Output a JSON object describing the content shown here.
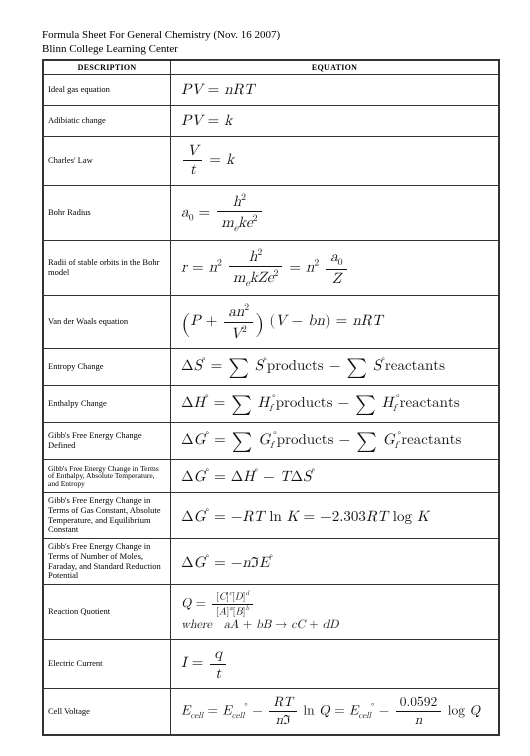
{
  "header": {
    "line1": "Formula Sheet For General Chemistry (Nov. 16 2007)",
    "line2": "Blinn College Learning Center"
  },
  "columns": {
    "desc": "DESCRIPTION",
    "eqn": "EQUATION"
  },
  "rows": [
    {
      "desc": "Ideal gas equation",
      "key": "ideal_gas"
    },
    {
      "desc": "Adibiatic change",
      "key": "adiabatic"
    },
    {
      "desc": "Charles' Law",
      "key": "charles"
    },
    {
      "desc": "Bohr Radius",
      "key": "bohr_radius"
    },
    {
      "desc": "Radii of stable orbits in the Bohr model",
      "key": "bohr_orbits"
    },
    {
      "desc": "Van der Waals equation",
      "key": "vdw"
    },
    {
      "desc": "Entropy Change",
      "key": "entropy"
    },
    {
      "desc": "Enthalpy Change",
      "key": "enthalpy"
    },
    {
      "desc": "Gibb's Free Energy Change Defined",
      "key": "gibbs_def"
    },
    {
      "desc": "Gibb's Free Energy Change in Terms of Enthalpy, Absolute Temperature, and Entropy",
      "key": "gibbs_hts"
    },
    {
      "desc": "Gibb's Free Energy Change in Terms of Gas Constant, Absolute Temperature, and Equilibrium Constant",
      "key": "gibbs_rtk"
    },
    {
      "desc": "Gibb's Free Energy Change in Terms of Number of Moles, Faraday, and Standard Reduction Potential",
      "key": "gibbs_nfe"
    },
    {
      "desc": "Reaction Quotient",
      "key": "reaction_q"
    },
    {
      "desc": "Electric Current",
      "key": "current"
    },
    {
      "desc": "Cell Voltage",
      "key": "cell_voltage"
    }
  ],
  "style": {
    "page_bg": "#ffffff",
    "border_color": "#333333",
    "title_fontsize": 11,
    "desc_fontsize": 8.5,
    "eqn_fontsize": 15,
    "header_fontsize": 8,
    "font_family": "Times New Roman"
  },
  "constants": {
    "nernst_coeff": "0.0592",
    "rtlnk_coeff": "2.303"
  }
}
